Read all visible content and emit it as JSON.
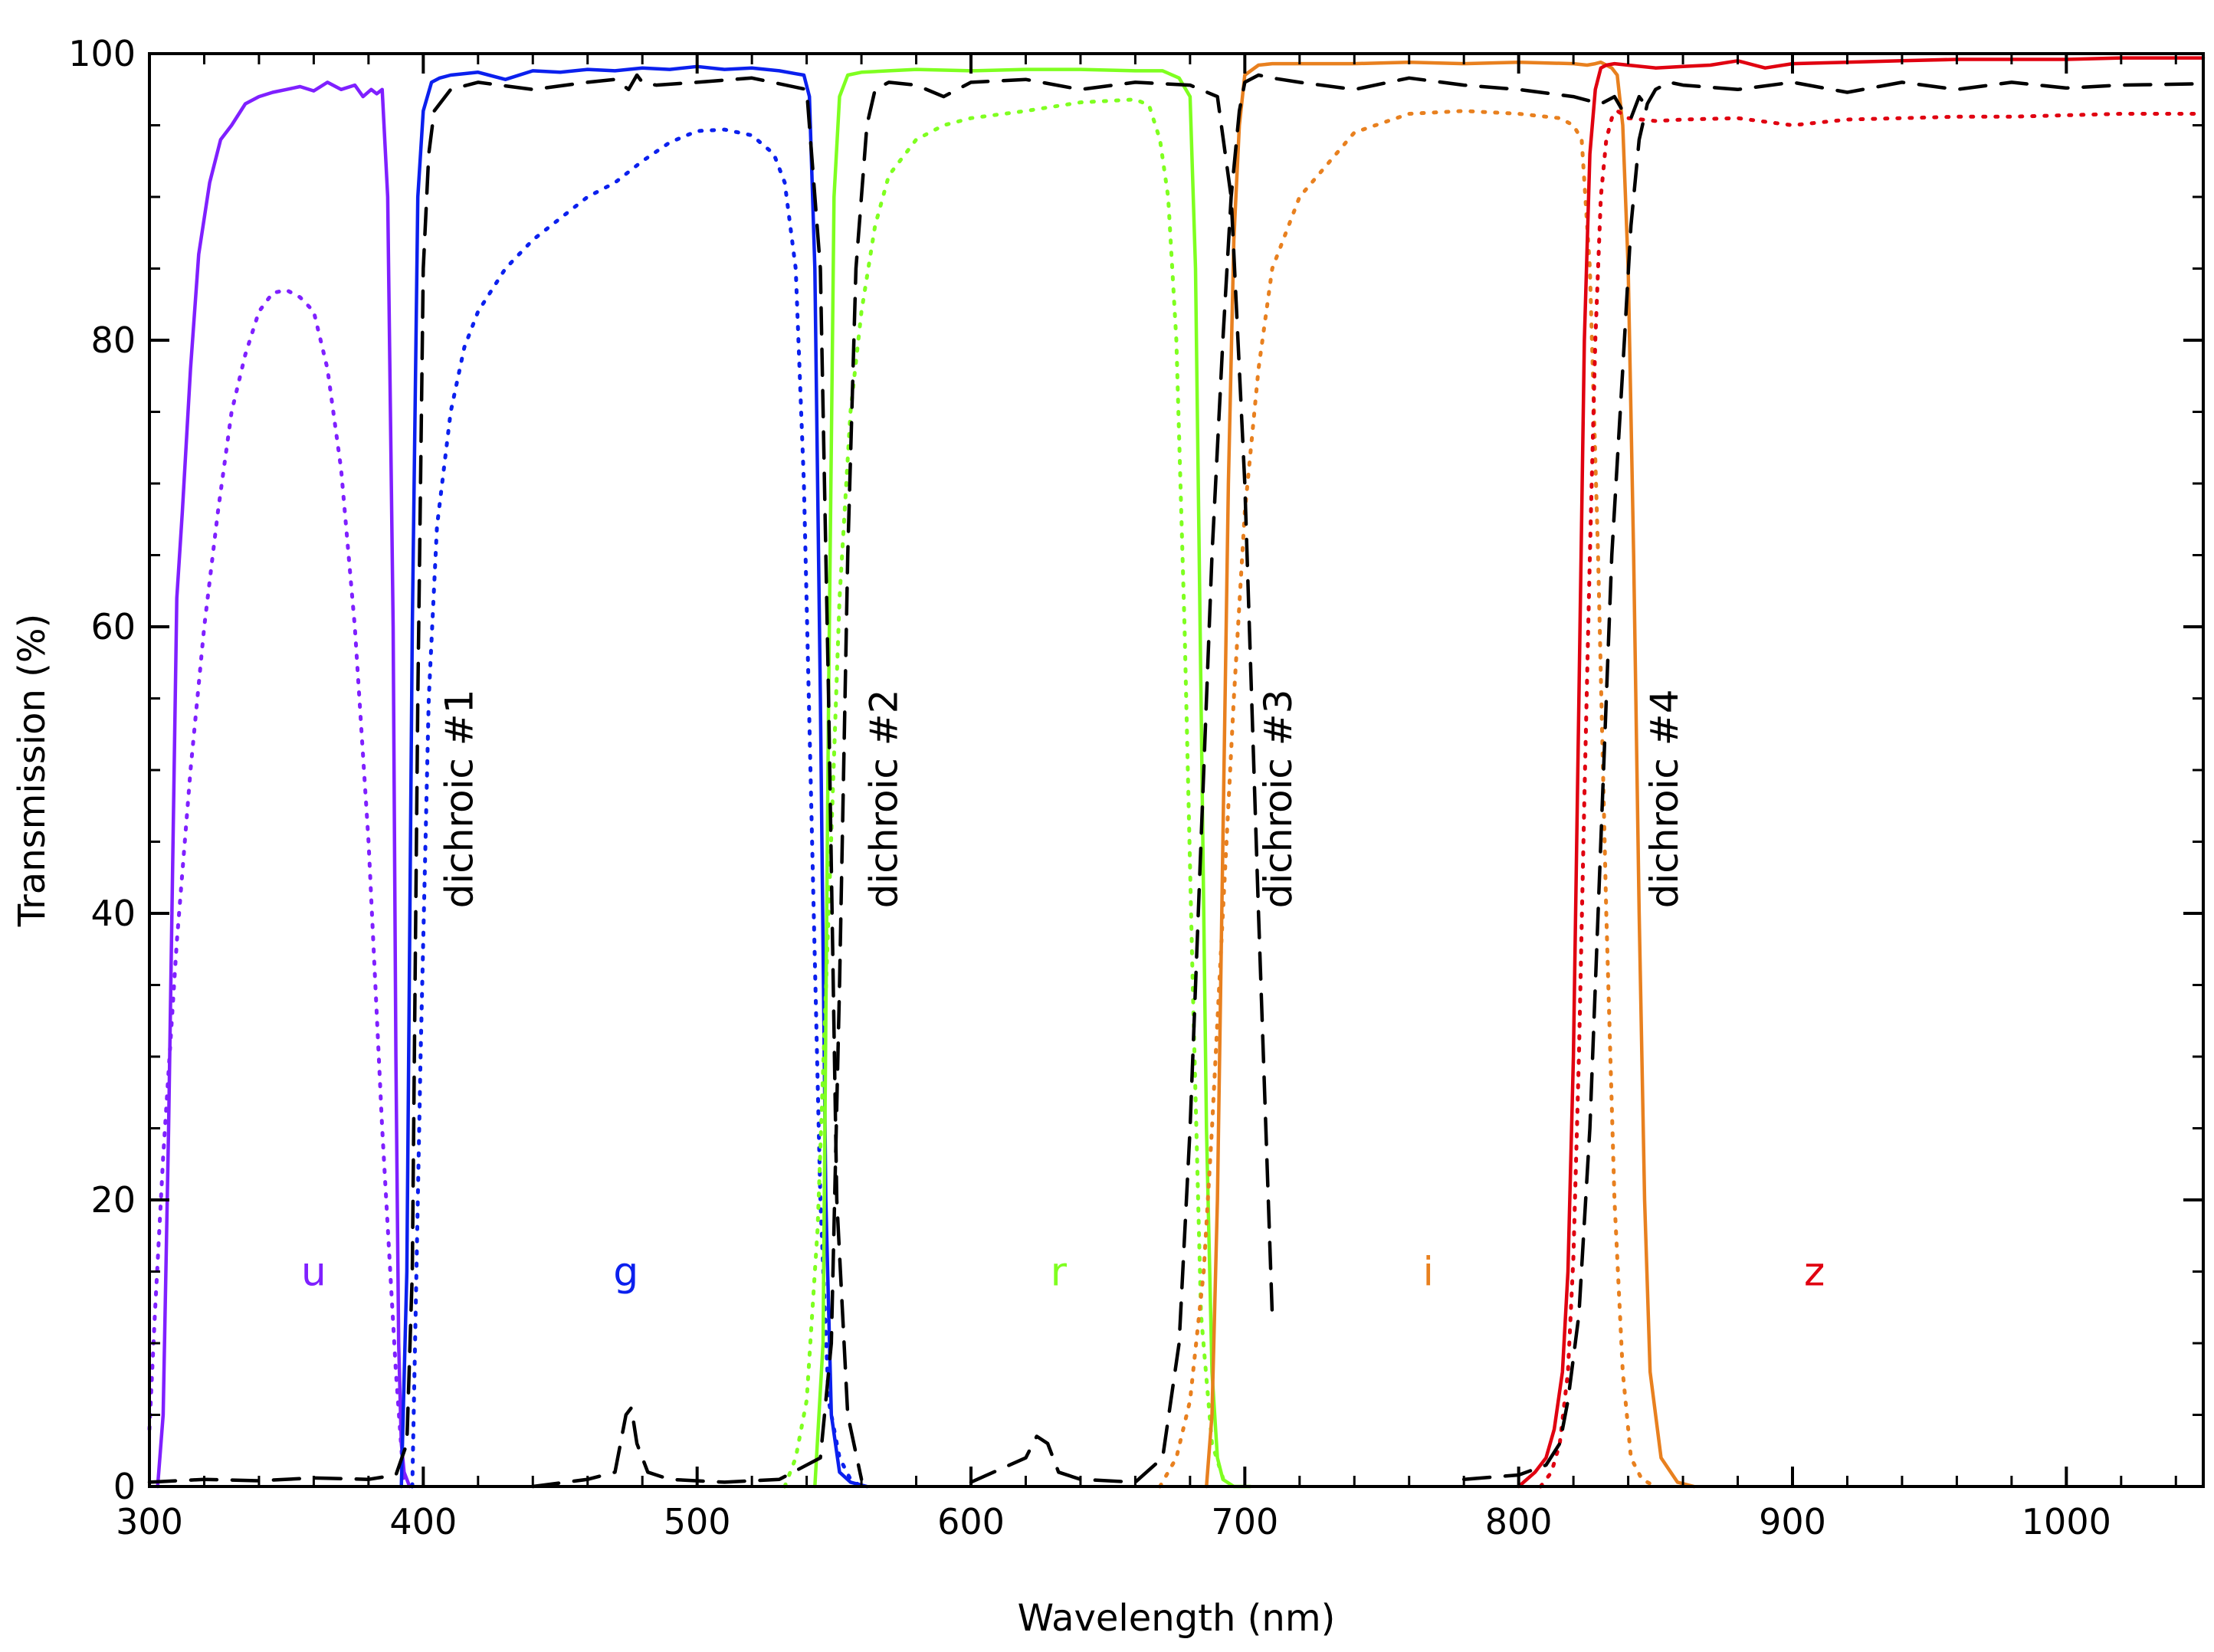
{
  "chart_data": {
    "type": "line",
    "xlabel": "Wavelength (nm)",
    "ylabel": "Transmission (%)",
    "xlim": [
      300,
      1050
    ],
    "ylim": [
      0,
      100
    ],
    "xticks": [
      300,
      400,
      500,
      600,
      700,
      800,
      900,
      1000
    ],
    "yticks": [
      0,
      20,
      40,
      60,
      80,
      100
    ],
    "x_minor_step": 20,
    "y_minor_step": 5,
    "grid": false,
    "legend": "none",
    "band_labels": [
      {
        "text": "u",
        "color": "#7f20ff",
        "x": 360,
        "y": 15
      },
      {
        "text": "g",
        "color": "#0b20ee",
        "x": 474,
        "y": 15
      },
      {
        "text": "r",
        "color": "#7fff20",
        "x": 632,
        "y": 15
      },
      {
        "text": "i",
        "color": "#e8801f",
        "x": 767,
        "y": 15
      },
      {
        "text": "z",
        "color": "#e00010",
        "x": 908,
        "y": 15
      }
    ],
    "dichroic_labels": [
      {
        "text": "dichroic #1",
        "x": 418,
        "y": 48
      },
      {
        "text": "dichroic #2",
        "x": 573,
        "y": 48
      },
      {
        "text": "dichroic #3",
        "x": 717,
        "y": 48
      },
      {
        "text": "dichroic #4",
        "x": 858,
        "y": 48
      }
    ],
    "series": [
      {
        "color": "#7f20ff",
        "style": "solid",
        "x": [
          303,
          305,
          307,
          310,
          312,
          315,
          318,
          322,
          326,
          330,
          335,
          340,
          345,
          350,
          355,
          360,
          365,
          370,
          375,
          378,
          381,
          383,
          385,
          387,
          389,
          390,
          391,
          392,
          393,
          395
        ],
        "y": [
          0,
          5,
          25,
          62,
          68,
          78,
          86,
          91,
          94,
          95,
          96.5,
          97,
          97.3,
          97.5,
          97.7,
          97.4,
          98,
          97.5,
          97.8,
          97,
          97.5,
          97.2,
          97.5,
          90,
          60,
          30,
          10,
          3,
          1,
          0
        ]
      },
      {
        "color": "#7f20ff",
        "style": "dotted",
        "x": [
          300,
          302,
          305,
          310,
          315,
          320,
          325,
          330,
          335,
          340,
          345,
          350,
          355,
          360,
          365,
          370,
          375,
          380,
          385,
          390,
          393
        ],
        "y": [
          4,
          12,
          23,
          38,
          50,
          60,
          68,
          75,
          79,
          82,
          83.3,
          83.5,
          83,
          82,
          78,
          71,
          60,
          45,
          25,
          8,
          0
        ]
      },
      {
        "color": "#0b20ee",
        "style": "solid",
        "x": [
          392,
          394,
          396,
          398,
          400,
          403,
          406,
          410,
          420,
          430,
          440,
          450,
          460,
          470,
          480,
          490,
          500,
          510,
          520,
          530,
          536,
          539,
          541,
          543,
          545,
          547,
          549,
          552,
          556,
          562
        ],
        "y": [
          0,
          15,
          60,
          90,
          96,
          98,
          98.3,
          98.5,
          98.7,
          98.2,
          98.8,
          98.7,
          98.9,
          98.8,
          99,
          98.9,
          99.1,
          98.9,
          99,
          98.8,
          98.6,
          98.5,
          97,
          85,
          55,
          20,
          5,
          1,
          0.3,
          0
        ]
      },
      {
        "color": "#0b20ee",
        "style": "dotted",
        "x": [
          396,
          399,
          402,
          405,
          410,
          415,
          420,
          430,
          440,
          450,
          460,
          470,
          480,
          490,
          500,
          510,
          520,
          528,
          532,
          536,
          539,
          542,
          545,
          548,
          552,
          556,
          560,
          562
        ],
        "y": [
          0,
          30,
          55,
          67,
          75,
          79.5,
          82,
          85,
          87,
          88.5,
          90,
          91,
          92.5,
          93.8,
          94.6,
          94.7,
          94.3,
          93,
          91,
          85,
          70,
          45,
          20,
          6,
          2,
          0.5,
          0,
          0
        ]
      },
      {
        "color": "#7fff20",
        "style": "solid",
        "x": [
          543,
          546,
          548,
          550,
          552,
          555,
          560,
          570,
          580,
          600,
          620,
          640,
          660,
          670,
          676,
          680,
          682,
          684,
          686,
          688,
          690,
          692,
          696,
          702
        ],
        "y": [
          0,
          10,
          55,
          90,
          97,
          98.5,
          98.7,
          98.8,
          98.9,
          98.8,
          98.9,
          98.9,
          98.8,
          98.8,
          98.3,
          97,
          85,
          55,
          25,
          8,
          2,
          0.5,
          0,
          0
        ]
      },
      {
        "color": "#7fff20",
        "style": "dotted",
        "x": [
          532,
          536,
          540,
          544,
          548,
          552,
          556,
          560,
          565,
          570,
          580,
          590,
          600,
          620,
          640,
          660,
          665,
          669,
          672,
          675,
          678,
          681,
          684,
          688,
          693
        ],
        "y": [
          0,
          2,
          6,
          18,
          40,
          62,
          75,
          82,
          88,
          91.5,
          94,
          95,
          95.5,
          96,
          96.6,
          96.8,
          96.4,
          94,
          90,
          80,
          60,
          35,
          12,
          3,
          0
        ]
      },
      {
        "color": "#e8801f",
        "style": "solid",
        "x": [
          686,
          688,
          690,
          692,
          694,
          696,
          698,
          700,
          705,
          710,
          720,
          740,
          760,
          780,
          800,
          820,
          825,
          828,
          830,
          832,
          834,
          836,
          838,
          840,
          842,
          844,
          846,
          848,
          852,
          858,
          864
        ],
        "y": [
          0,
          5,
          20,
          45,
          70,
          87,
          95,
          98.5,
          99.2,
          99.3,
          99.3,
          99.3,
          99.4,
          99.3,
          99.4,
          99.3,
          99.2,
          99.3,
          99.4,
          99.2,
          99,
          98.5,
          95,
          85,
          65,
          40,
          20,
          8,
          2,
          0.3,
          0
        ]
      },
      {
        "color": "#e8801f",
        "style": "dotted",
        "x": [
          669,
          675,
          680,
          685,
          688,
          692,
          696,
          700,
          705,
          710,
          720,
          740,
          760,
          780,
          800,
          815,
          820,
          823,
          826,
          829,
          832,
          835,
          838,
          841,
          845,
          850
        ],
        "y": [
          0,
          2,
          6,
          15,
          25,
          40,
          55,
          68,
          78,
          85,
          90,
          94.5,
          95.8,
          96,
          95.8,
          95.5,
          95,
          94,
          85,
          65,
          40,
          20,
          8,
          2,
          0.5,
          0
        ]
      },
      {
        "color": "#e00010",
        "style": "solid",
        "x": [
          800,
          806,
          810,
          813,
          816,
          818,
          820,
          822,
          824,
          826,
          828,
          830,
          832,
          835,
          840,
          850,
          860,
          870,
          880,
          890,
          900,
          920,
          940,
          960,
          980,
          1000,
          1020,
          1050
        ],
        "y": [
          0,
          1,
          2,
          4,
          8,
          15,
          30,
          55,
          80,
          93,
          97.5,
          99,
          99.2,
          99.3,
          99.2,
          99,
          99.1,
          99.2,
          99.5,
          99,
          99.3,
          99.4,
          99.5,
          99.6,
          99.6,
          99.6,
          99.7,
          99.7
        ]
      },
      {
        "color": "#e00010",
        "style": "dotted",
        "x": [
          808,
          812,
          815,
          818,
          820,
          822,
          824,
          826,
          828,
          830,
          832,
          834,
          836,
          840,
          850,
          860,
          880,
          900,
          920,
          940,
          960,
          980,
          1000,
          1020,
          1050
        ],
        "y": [
          0,
          1,
          3,
          8,
          16,
          30,
          48,
          65,
          80,
          90,
          94,
          95.5,
          96,
          95.5,
          95.3,
          95.4,
          95.5,
          95,
          95.4,
          95.5,
          95.6,
          95.6,
          95.7,
          95.8,
          95.8
        ]
      },
      {
        "color": "#000000",
        "style": "dashed",
        "x": [
          300,
          320,
          340,
          360,
          380,
          390,
          394,
          396,
          398,
          400,
          402,
          404,
          410,
          420,
          440,
          460,
          470,
          475,
          478,
          480,
          485,
          500,
          520,
          540,
          545,
          548,
          551,
          555,
          560
        ],
        "y": [
          0.3,
          0.5,
          0.4,
          0.6,
          0.5,
          0.8,
          3,
          15,
          55,
          85,
          93,
          96,
          97.5,
          98,
          97.5,
          98,
          98.2,
          97.5,
          98.5,
          98,
          97.8,
          98,
          98.3,
          97.5,
          85,
          55,
          20,
          5,
          0.5
        ]
      },
      {
        "color": "#000000",
        "style": "dashed",
        "x": [
          440,
          460,
          470,
          474,
          476,
          478,
          482,
          490,
          510,
          530,
          545,
          549,
          552,
          555,
          558,
          562,
          565,
          570,
          580,
          590,
          600,
          620,
          640,
          660,
          680,
          690,
          695,
          700,
          705,
          710
        ],
        "y": [
          0,
          0.5,
          1,
          5,
          5.5,
          3,
          1,
          0.5,
          0.3,
          0.5,
          2,
          10,
          35,
          65,
          85,
          95,
          97.5,
          98,
          97.8,
          97,
          98,
          98.2,
          97.5,
          98,
          97.8,
          97,
          90,
          70,
          40,
          12
        ]
      },
      {
        "color": "#000000",
        "style": "dashed",
        "x": [
          600,
          620,
          624,
          628,
          632,
          640,
          660,
          670,
          676,
          680,
          684,
          688,
          692,
          695,
          698,
          700,
          705,
          710,
          720,
          740,
          760,
          780,
          800,
          820,
          830,
          835,
          838,
          841,
          844,
          846
        ],
        "y": [
          0.3,
          2,
          3.5,
          3,
          1,
          0.5,
          0.3,
          2,
          10,
          25,
          45,
          65,
          80,
          90,
          96,
          98,
          98.5,
          98.3,
          98,
          97.5,
          98.3,
          97.8,
          97.5,
          97,
          96.5,
          97,
          96,
          95.5,
          97,
          96.5
        ]
      },
      {
        "color": "#000000",
        "style": "dashed",
        "x": [
          780,
          800,
          810,
          815,
          818,
          822,
          826,
          830,
          834,
          838,
          841,
          844,
          847,
          850,
          855,
          860,
          880,
          900,
          920,
          940,
          960,
          980,
          1000,
          1020,
          1050
        ],
        "y": [
          0.5,
          0.8,
          1.5,
          3,
          6,
          12,
          25,
          45,
          65,
          78,
          88,
          94,
          96.5,
          97.5,
          98,
          97.8,
          97.5,
          98,
          97.3,
          98,
          97.5,
          98,
          97.6,
          97.8,
          97.9
        ]
      }
    ]
  }
}
